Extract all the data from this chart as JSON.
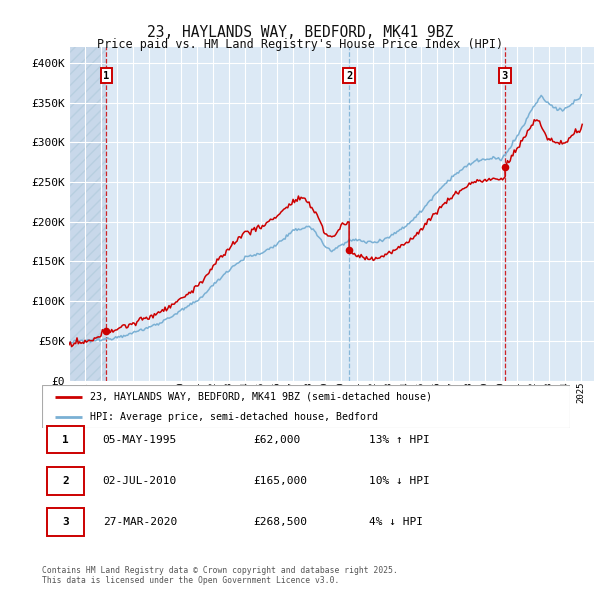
{
  "title": "23, HAYLANDS WAY, BEDFORD, MK41 9BZ",
  "subtitle": "Price paid vs. HM Land Registry's House Price Index (HPI)",
  "background_color": "#ffffff",
  "plot_bg_color": "#dce9f5",
  "grid_color": "#ffffff",
  "hatch_color": "#c8d8ea",
  "ylim": [
    0,
    420000
  ],
  "yticks": [
    0,
    50000,
    100000,
    150000,
    200000,
    250000,
    300000,
    350000,
    400000
  ],
  "ytick_labels": [
    "£0",
    "£50K",
    "£100K",
    "£150K",
    "£200K",
    "£250K",
    "£300K",
    "£350K",
    "£400K"
  ],
  "legend_label_red": "23, HAYLANDS WAY, BEDFORD, MK41 9BZ (semi-detached house)",
  "legend_label_blue": "HPI: Average price, semi-detached house, Bedford",
  "red_line_color": "#cc0000",
  "blue_line_color": "#7ab0d4",
  "marker_color": "#cc0000",
  "xlim_start": 1993,
  "xlim_end": 2025.8,
  "transaction1": {
    "date_num": 1995.34,
    "price": 62000,
    "label": "1"
  },
  "transaction2": {
    "date_num": 2010.5,
    "price": 165000,
    "label": "2"
  },
  "transaction3": {
    "date_num": 2020.23,
    "price": 268500,
    "label": "3"
  },
  "vline_colors": [
    "#cc0000",
    "#7ab0d4",
    "#cc0000"
  ],
  "footnote": "Contains HM Land Registry data © Crown copyright and database right 2025.\nThis data is licensed under the Open Government Licence v3.0.",
  "table_rows": [
    {
      "num": "1",
      "date": "05-MAY-1995",
      "price": "£62,000",
      "change": "13% ↑ HPI"
    },
    {
      "num": "2",
      "date": "02-JUL-2010",
      "price": "£165,000",
      "change": "10% ↓ HPI"
    },
    {
      "num": "3",
      "date": "27-MAR-2020",
      "price": "£268,500",
      "change": "4% ↓ HPI"
    }
  ],
  "hpi_keypoints": [
    [
      1993.0,
      48000
    ],
    [
      1994.0,
      50000
    ],
    [
      1995.0,
      51000
    ],
    [
      1996.0,
      55000
    ],
    [
      1997.0,
      60000
    ],
    [
      1998.0,
      67000
    ],
    [
      1999.0,
      76000
    ],
    [
      2000.0,
      88000
    ],
    [
      2001.0,
      100000
    ],
    [
      2002.0,
      120000
    ],
    [
      2003.0,
      140000
    ],
    [
      2004.0,
      155000
    ],
    [
      2005.0,
      160000
    ],
    [
      2006.0,
      172000
    ],
    [
      2007.0,
      188000
    ],
    [
      2008.0,
      195000
    ],
    [
      2008.75,
      178000
    ],
    [
      2009.0,
      168000
    ],
    [
      2009.5,
      163000
    ],
    [
      2010.0,
      172000
    ],
    [
      2010.5,
      176000
    ],
    [
      2011.0,
      177000
    ],
    [
      2011.5,
      175000
    ],
    [
      2012.0,
      174000
    ],
    [
      2012.5,
      177000
    ],
    [
      2013.0,
      181000
    ],
    [
      2014.0,
      194000
    ],
    [
      2015.0,
      213000
    ],
    [
      2016.0,
      238000
    ],
    [
      2017.0,
      258000
    ],
    [
      2018.0,
      272000
    ],
    [
      2018.5,
      278000
    ],
    [
      2019.0,
      278000
    ],
    [
      2019.5,
      280000
    ],
    [
      2020.0,
      278000
    ],
    [
      2020.5,
      292000
    ],
    [
      2021.0,
      308000
    ],
    [
      2021.5,
      325000
    ],
    [
      2022.0,
      345000
    ],
    [
      2022.5,
      358000
    ],
    [
      2023.0,
      348000
    ],
    [
      2023.5,
      342000
    ],
    [
      2024.0,
      342000
    ],
    [
      2024.5,
      350000
    ],
    [
      2025.0,
      358000
    ]
  ],
  "prop_keypoints_1": [
    [
      1993.0,
      45000
    ],
    [
      1994.5,
      50000
    ],
    [
      1995.34,
      62000
    ],
    [
      1996.0,
      65000
    ],
    [
      1997.0,
      72000
    ],
    [
      1998.0,
      80000
    ],
    [
      1999.0,
      90000
    ],
    [
      2000.0,
      103000
    ],
    [
      2001.0,
      118000
    ],
    [
      2002.0,
      143000
    ],
    [
      2003.0,
      167000
    ],
    [
      2004.0,
      187000
    ],
    [
      2005.0,
      193000
    ],
    [
      2006.0,
      208000
    ],
    [
      2007.0,
      225000
    ],
    [
      2007.5,
      230000
    ],
    [
      2008.0,
      222000
    ],
    [
      2008.5,
      210000
    ],
    [
      2009.0,
      185000
    ],
    [
      2009.5,
      180000
    ],
    [
      2010.0,
      195000
    ],
    [
      2010.49,
      200000
    ]
  ],
  "prop_keypoints_2": [
    [
      2010.5,
      165000
    ],
    [
      2010.75,
      160000
    ],
    [
      2011.0,
      157000
    ],
    [
      2011.5,
      155000
    ],
    [
      2012.0,
      153000
    ],
    [
      2012.5,
      156000
    ],
    [
      2013.0,
      160000
    ],
    [
      2014.0,
      172000
    ],
    [
      2015.0,
      190000
    ],
    [
      2016.0,
      214000
    ],
    [
      2017.0,
      233000
    ],
    [
      2018.0,
      247000
    ],
    [
      2018.5,
      252000
    ],
    [
      2019.0,
      252000
    ],
    [
      2019.5,
      254000
    ],
    [
      2020.0,
      253000
    ],
    [
      2020.22,
      256000
    ]
  ],
  "prop_keypoints_3": [
    [
      2020.23,
      268500
    ],
    [
      2020.5,
      278000
    ],
    [
      2021.0,
      292000
    ],
    [
      2021.5,
      308000
    ],
    [
      2022.0,
      325000
    ],
    [
      2022.3,
      330000
    ],
    [
      2022.5,
      322000
    ],
    [
      2022.75,
      308000
    ],
    [
      2023.0,
      305000
    ],
    [
      2023.5,
      298000
    ],
    [
      2024.0,
      300000
    ],
    [
      2024.5,
      310000
    ],
    [
      2025.0,
      318000
    ]
  ]
}
